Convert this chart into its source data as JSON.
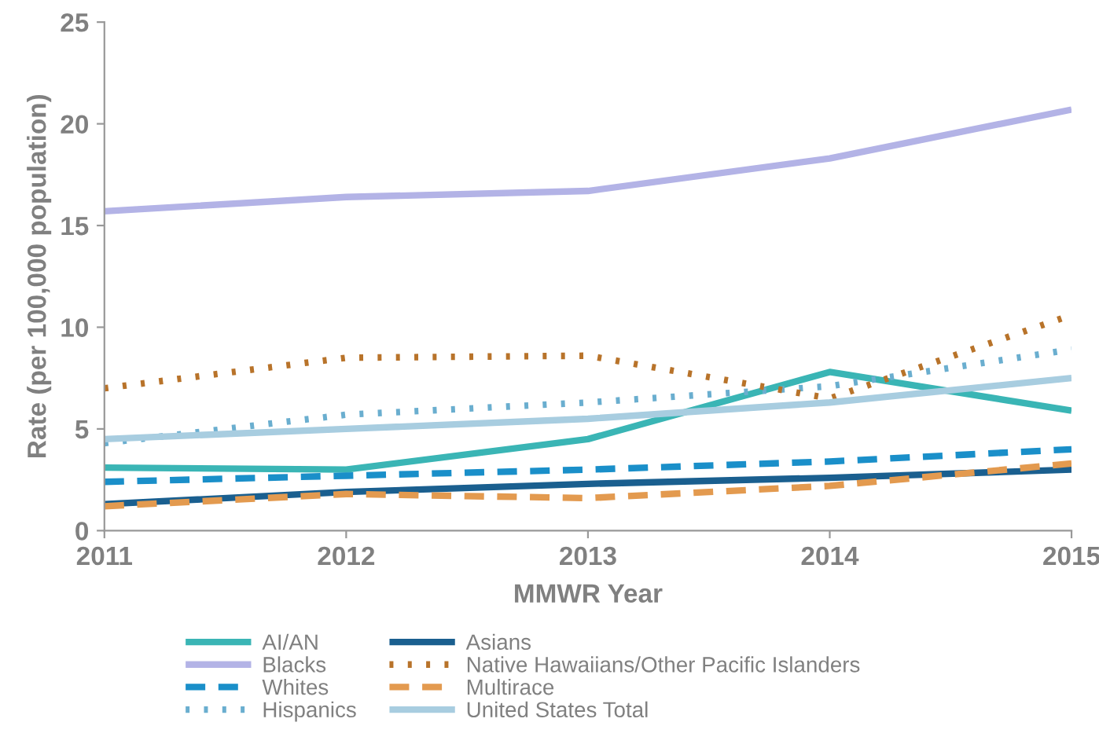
{
  "chart_data": {
    "type": "line",
    "xlabel": "MMWR Year",
    "ylabel": "Rate (per 100,000 population)",
    "x": [
      2011,
      2012,
      2013,
      2014,
      2015
    ],
    "xlim": [
      2011,
      2015
    ],
    "xticks": [
      2011,
      2012,
      2013,
      2014,
      2015
    ],
    "ylim": [
      0,
      25
    ],
    "yticks": [
      0,
      5,
      10,
      15,
      20,
      25
    ],
    "grid": false,
    "legend": "bottom",
    "marker": "none",
    "series": [
      {
        "name": "AI/AN",
        "color": "#3ab5b5",
        "line_style": "solid",
        "values": [
          3.1,
          3.0,
          4.5,
          7.8,
          5.9
        ]
      },
      {
        "name": "Blacks",
        "color": "#b3b3e6",
        "line_style": "solid",
        "values": [
          15.7,
          16.4,
          16.7,
          18.3,
          20.7
        ]
      },
      {
        "name": "Whites",
        "color": "#1a8fc9",
        "line_style": "dashed",
        "values": [
          2.4,
          2.7,
          3.0,
          3.4,
          4.0
        ]
      },
      {
        "name": "Hispanics",
        "color": "#6aaecf",
        "line_style": "dotted",
        "values": [
          4.3,
          5.7,
          6.3,
          7.1,
          8.9
        ]
      },
      {
        "name": "Asians",
        "color": "#1a5f8f",
        "line_style": "solid",
        "values": [
          1.3,
          1.9,
          2.3,
          2.6,
          3.0
        ]
      },
      {
        "name": "Native Hawaiians/Other Pacific Islanders",
        "color": "#b8732a",
        "line_style": "dotted",
        "values": [
          7.0,
          8.5,
          8.6,
          6.5,
          10.6
        ]
      },
      {
        "name": "Multirace",
        "color": "#e39a4f",
        "line_style": "dashed",
        "values": [
          1.2,
          1.8,
          1.6,
          2.2,
          3.3
        ]
      },
      {
        "name": "United States Total",
        "color": "#a8cde0",
        "line_style": "solid",
        "values": [
          4.5,
          5.0,
          5.5,
          6.3,
          7.5
        ]
      }
    ]
  }
}
